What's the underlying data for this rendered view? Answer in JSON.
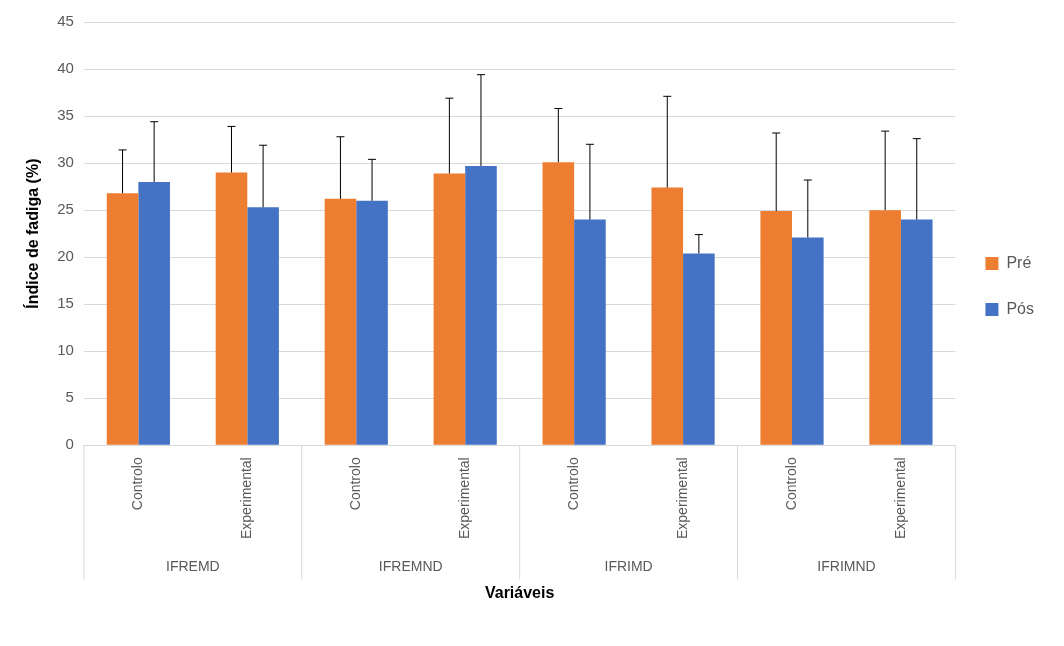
{
  "chart_data": {
    "type": "bar",
    "categories": [
      "Controlo",
      "Experimental",
      "Controlo",
      "Experimental",
      "Controlo",
      "Experimental",
      "Controlo",
      "Experimental"
    ],
    "series": [
      {
        "name": "Pré",
        "color": "#ed7d31",
        "values": [
          26.8,
          29.0,
          26.2,
          28.9,
          30.1,
          27.4,
          24.9,
          25.0
        ],
        "errors": [
          [
            26.8,
            31.4
          ],
          [
            29.0,
            33.9
          ],
          [
            26.2,
            32.8
          ],
          [
            28.9,
            36.9
          ],
          [
            30.1,
            35.8
          ],
          [
            27.4,
            37.1
          ],
          [
            24.9,
            33.2
          ],
          [
            25.0,
            33.4
          ]
        ]
      },
      {
        "name": "Pós",
        "color": "#4472c4",
        "values": [
          28.0,
          25.3,
          26.0,
          29.7,
          24.0,
          20.4,
          22.1,
          24.0
        ],
        "errors": [
          [
            28.0,
            34.4
          ],
          [
            25.3,
            31.9
          ],
          [
            26.0,
            30.4
          ],
          [
            29.7,
            39.4
          ],
          [
            24.0,
            32.0
          ],
          [
            20.4,
            22.4
          ],
          [
            22.1,
            28.2
          ],
          [
            24.0,
            32.6
          ]
        ]
      }
    ],
    "annotations": [
      "IFREMD",
      "IFREMND",
      "IFRIMD",
      "IFRIMND"
    ],
    "xlabel": "Variáveis",
    "ylabel": "Índice de fadiga (%)",
    "ylim": [
      0,
      45
    ],
    "yticks": [
      0,
      5,
      10,
      15,
      20,
      25,
      30,
      35,
      40,
      45
    ],
    "grid": "y",
    "legend": "right"
  }
}
